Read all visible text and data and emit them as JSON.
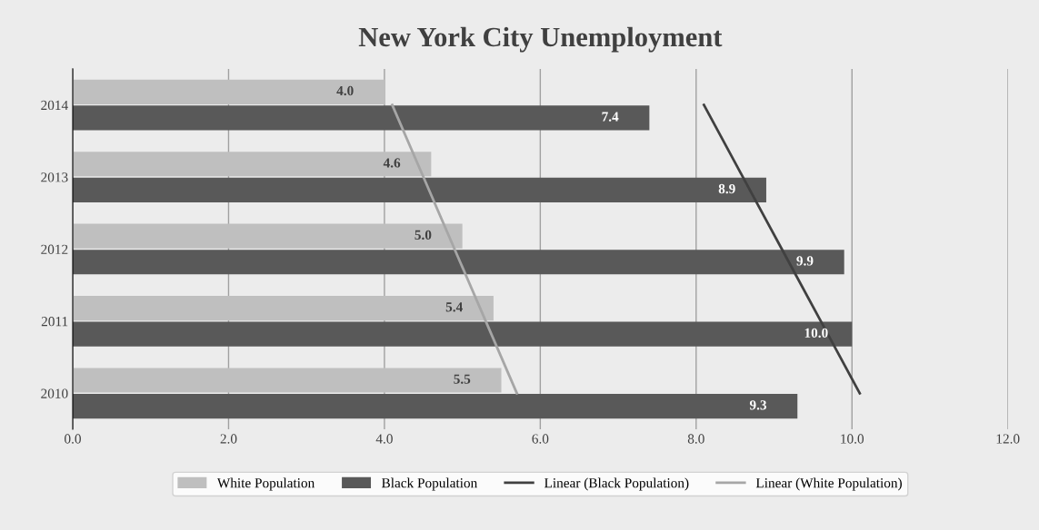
{
  "chart_data": {
    "type": "bar",
    "orientation": "horizontal",
    "title": "New York City Unemployment",
    "categories": [
      "2014",
      "2013",
      "2012",
      "2011",
      "2010"
    ],
    "series": [
      {
        "name": "White Population",
        "color": "#bfbfbf",
        "values": [
          4.0,
          4.6,
          5.0,
          5.4,
          5.5
        ],
        "value_labels": [
          "4.0",
          "4.6",
          "5.0",
          "5.4",
          "5.5"
        ]
      },
      {
        "name": "Black Population",
        "color": "#595959",
        "values": [
          7.4,
          8.9,
          9.9,
          10.0,
          9.3
        ],
        "value_labels": [
          "7.4",
          "8.9",
          "9.9",
          "10.0",
          "9.3"
        ]
      },
      {
        "name": "Linear (Black Population)",
        "type": "line",
        "color": "#404040",
        "values": [
          8.1,
          8.6,
          9.1,
          9.6,
          10.1
        ]
      },
      {
        "name": "Linear (White Population)",
        "type": "line",
        "color": "#a6a6a6",
        "values": [
          4.1,
          4.5,
          4.9,
          5.3,
          5.7
        ]
      }
    ],
    "xlim": [
      0,
      12
    ],
    "xticks": [
      {
        "value": 0,
        "label": "0.0"
      },
      {
        "value": 2,
        "label": "2.0"
      },
      {
        "value": 4,
        "label": "4.0"
      },
      {
        "value": 6,
        "label": "6.0"
      },
      {
        "value": 8,
        "label": "8.0"
      },
      {
        "value": 10,
        "label": "10.0"
      },
      {
        "value": 12,
        "label": "12.0"
      }
    ],
    "grid": "x",
    "legend": "bottom"
  }
}
